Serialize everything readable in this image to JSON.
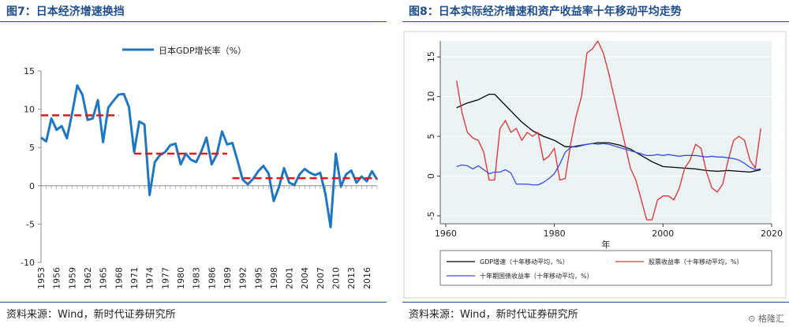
{
  "left_panel": {
    "title": "图7：日本经济增速换挡",
    "source": "资料来源：Wind，新时代证券研究所"
  },
  "right_panel": {
    "title": "图8：日本实际经济增速和资产收益率十年移动平均走势",
    "source": "资料来源：Wind，新时代证券研究所"
  },
  "watermark": "格隆汇",
  "chart_data": [
    {
      "type": "line",
      "title": "",
      "xlabel": "",
      "ylabel": "",
      "ylim": [
        -10,
        15
      ],
      "yticks": [
        -10,
        -5,
        0,
        5,
        10,
        15
      ],
      "xticks": [
        1953,
        1956,
        1959,
        1962,
        1965,
        1968,
        1971,
        1974,
        1977,
        1980,
        1983,
        1986,
        1989,
        1992,
        1995,
        1998,
        2001,
        2004,
        2007,
        2010,
        2013,
        2016
      ],
      "xlim": [
        1953,
        2018
      ],
      "grid": false,
      "legend_position": "top-center",
      "series": [
        {
          "name": "日本GDP增长率（%）",
          "color": "#1f77c4",
          "x": [
            1953,
            1954,
            1955,
            1956,
            1957,
            1958,
            1959,
            1960,
            1961,
            1962,
            1963,
            1964,
            1965,
            1966,
            1967,
            1968,
            1969,
            1970,
            1971,
            1972,
            1973,
            1974,
            1975,
            1976,
            1977,
            1978,
            1979,
            1980,
            1981,
            1982,
            1983,
            1984,
            1985,
            1986,
            1987,
            1988,
            1989,
            1990,
            1991,
            1992,
            1993,
            1994,
            1995,
            1996,
            1997,
            1998,
            1999,
            2000,
            2001,
            2002,
            2003,
            2004,
            2005,
            2006,
            2007,
            2008,
            2009,
            2010,
            2011,
            2012,
            2013,
            2014,
            2015,
            2016,
            2017,
            2018
          ],
          "y": [
            6.3,
            5.8,
            8.8,
            7.3,
            7.8,
            6.2,
            9.4,
            13.1,
            11.9,
            8.6,
            8.8,
            11.2,
            5.7,
            10.2,
            11.1,
            11.9,
            12.0,
            10.3,
            4.4,
            8.4,
            8.0,
            -1.2,
            3.1,
            4.0,
            4.4,
            5.3,
            5.5,
            2.8,
            4.2,
            3.4,
            3.1,
            4.5,
            6.3,
            2.8,
            4.1,
            7.1,
            5.4,
            5.6,
            3.3,
            0.8,
            0.2,
            0.9,
            1.9,
            2.6,
            1.6,
            -2.0,
            -0.2,
            2.3,
            0.4,
            0.1,
            1.5,
            2.2,
            1.7,
            1.4,
            1.7,
            -1.1,
            -5.4,
            4.2,
            -0.1,
            1.5,
            2.0,
            0.4,
            1.2,
            0.6,
            1.9,
            0.8
          ]
        },
        {
          "name": "",
          "color": "#e01818",
          "dashed": true,
          "segments": [
            {
              "x": [
                1953,
                1968
              ],
              "y": [
                9.2,
                9.2
              ]
            },
            {
              "x": [
                1971,
                1989
              ],
              "y": [
                4.2,
                4.2
              ]
            },
            {
              "x": [
                1990,
                2018
              ],
              "y": [
                1.0,
                1.0
              ]
            }
          ]
        }
      ]
    },
    {
      "type": "line",
      "title": "",
      "xlabel": "年",
      "ylabel": "",
      "ylim": [
        -6,
        17
      ],
      "yticks": [
        -5,
        0,
        5,
        10,
        15
      ],
      "xlim": [
        1959,
        2020
      ],
      "xticks": [
        1960,
        1980,
        2000,
        2020
      ],
      "grid": true,
      "legend_position": "bottom",
      "series": [
        {
          "name": "GDP增速（十年移动平均，%）",
          "color": "#000000",
          "x": [
            1962,
            1964,
            1966,
            1968,
            1969,
            1970,
            1972,
            1974,
            1976,
            1978,
            1980,
            1982,
            1984,
            1986,
            1988,
            1990,
            1992,
            1994,
            1996,
            1998,
            2000,
            2002,
            2004,
            2006,
            2008,
            2010,
            2012,
            2014,
            2016,
            2018
          ],
          "y": [
            8.6,
            9.2,
            9.6,
            10.3,
            10.3,
            9.6,
            8.2,
            6.8,
            5.7,
            5.0,
            4.5,
            3.7,
            3.7,
            4.0,
            4.2,
            4.2,
            3.9,
            3.4,
            2.6,
            1.8,
            1.2,
            1.1,
            1.0,
            0.9,
            0.7,
            0.6,
            0.7,
            0.6,
            0.5,
            0.8
          ]
        },
        {
          "name": "股票收益率（十年移动平均，%）",
          "color": "#e03030",
          "x": [
            1962,
            1963,
            1964,
            1965,
            1966,
            1967,
            1968,
            1969,
            1970,
            1971,
            1972,
            1973,
            1974,
            1975,
            1976,
            1977,
            1978,
            1979,
            1980,
            1981,
            1982,
            1983,
            1984,
            1985,
            1986,
            1987,
            1988,
            1989,
            1990,
            1991,
            1992,
            1993,
            1994,
            1995,
            1996,
            1997,
            1998,
            1999,
            2000,
            2001,
            2002,
            2003,
            2004,
            2005,
            2006,
            2007,
            2008,
            2009,
            2010,
            2011,
            2012,
            2013,
            2014,
            2015,
            2016,
            2017,
            2018
          ],
          "y": [
            12.0,
            8.0,
            5.5,
            4.8,
            4.5,
            3.0,
            -0.5,
            -0.5,
            6.0,
            7.0,
            5.5,
            6.0,
            4.5,
            5.5,
            5.0,
            5.5,
            2.0,
            2.5,
            3.5,
            -0.5,
            -0.3,
            4.0,
            7.5,
            10.0,
            15.5,
            16.0,
            17.0,
            15.5,
            13.0,
            10.0,
            7.0,
            4.0,
            1.0,
            -0.5,
            -3.0,
            -5.5,
            -5.5,
            -3.0,
            -2.5,
            -2.5,
            -3.0,
            -1.5,
            1.0,
            2.0,
            4.0,
            3.5,
            0.5,
            -1.5,
            -2.0,
            -1.0,
            2.0,
            4.5,
            5.0,
            4.5,
            2.0,
            1.0,
            6.0
          ]
        },
        {
          "name": "十年期国债收益率（十年移动平均，%）",
          "color": "#3a4ce0",
          "x": [
            1962,
            1963,
            1964,
            1965,
            1966,
            1967,
            1968,
            1969,
            1970,
            1971,
            1972,
            1973,
            1974,
            1975,
            1976,
            1977,
            1978,
            1979,
            1980,
            1981,
            1982,
            1983,
            1984,
            1985,
            1986,
            1987,
            1988,
            1989,
            1990,
            1991,
            1992,
            1993,
            1994,
            1995,
            1996,
            1997,
            1998,
            1999,
            2000,
            2001,
            2002,
            2003,
            2004,
            2005,
            2006,
            2007,
            2008,
            2009,
            2010,
            2011,
            2012,
            2013,
            2014,
            2015,
            2016,
            2017,
            2018
          ],
          "y": [
            1.2,
            1.4,
            1.3,
            0.9,
            1.3,
            0.8,
            0.3,
            0.5,
            0.5,
            0.8,
            0.4,
            -1.0,
            -1.0,
            -1.0,
            -1.1,
            -1.1,
            -0.8,
            -0.3,
            0.3,
            1.5,
            3.0,
            3.6,
            3.8,
            3.9,
            4.0,
            4.1,
            4.0,
            4.1,
            4.0,
            3.8,
            3.6,
            3.4,
            3.2,
            3.0,
            2.8,
            2.6,
            2.6,
            2.7,
            2.6,
            2.7,
            2.6,
            2.5,
            2.6,
            2.6,
            2.6,
            2.5,
            2.4,
            2.5,
            2.4,
            2.4,
            2.3,
            2.2,
            2.0,
            1.6,
            1.1,
            0.8,
            0.9
          ]
        }
      ]
    }
  ]
}
